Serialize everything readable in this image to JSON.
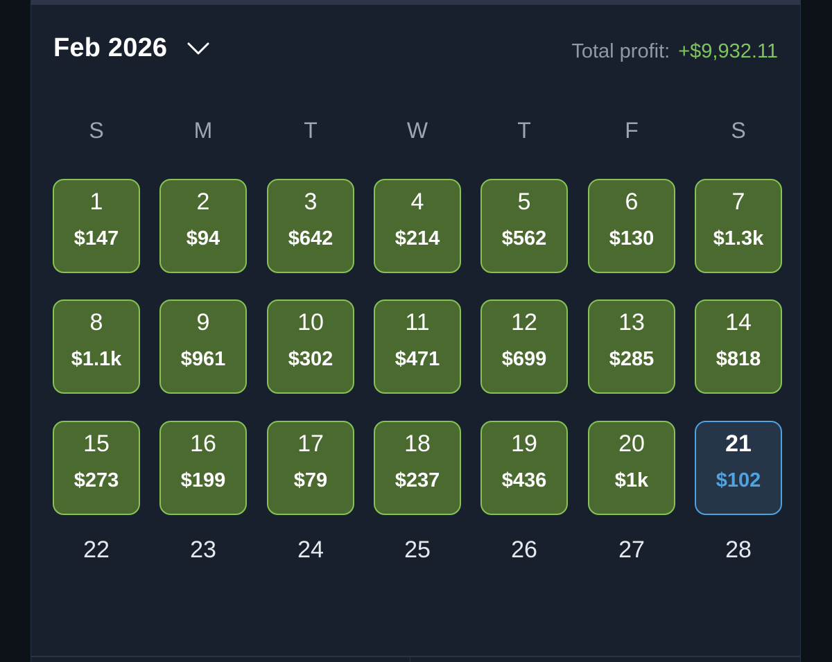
{
  "header": {
    "month_label": "Feb 2026",
    "total_label": "Total profit:",
    "total_value": "+$9,932.11"
  },
  "colors": {
    "profit_bg": "#4b6a2f",
    "profit_border": "#86c256",
    "today_border": "#4ea3e0",
    "total_value": "#7fc65a"
  },
  "weekdays": [
    "S",
    "M",
    "T",
    "W",
    "T",
    "F",
    "S"
  ],
  "days": [
    {
      "num": "1",
      "amount": "$147",
      "state": "profit"
    },
    {
      "num": "2",
      "amount": "$94",
      "state": "profit"
    },
    {
      "num": "3",
      "amount": "$642",
      "state": "profit"
    },
    {
      "num": "4",
      "amount": "$214",
      "state": "profit"
    },
    {
      "num": "5",
      "amount": "$562",
      "state": "profit"
    },
    {
      "num": "6",
      "amount": "$130",
      "state": "profit"
    },
    {
      "num": "7",
      "amount": "$1.3k",
      "state": "profit"
    },
    {
      "num": "8",
      "amount": "$1.1k",
      "state": "profit"
    },
    {
      "num": "9",
      "amount": "$961",
      "state": "profit"
    },
    {
      "num": "10",
      "amount": "$302",
      "state": "profit"
    },
    {
      "num": "11",
      "amount": "$471",
      "state": "profit"
    },
    {
      "num": "12",
      "amount": "$699",
      "state": "profit"
    },
    {
      "num": "13",
      "amount": "$285",
      "state": "profit"
    },
    {
      "num": "14",
      "amount": "$818",
      "state": "profit"
    },
    {
      "num": "15",
      "amount": "$273",
      "state": "profit"
    },
    {
      "num": "16",
      "amount": "$199",
      "state": "profit"
    },
    {
      "num": "17",
      "amount": "$79",
      "state": "profit"
    },
    {
      "num": "18",
      "amount": "$237",
      "state": "profit"
    },
    {
      "num": "19",
      "amount": "$436",
      "state": "profit"
    },
    {
      "num": "20",
      "amount": "$1k",
      "state": "profit"
    },
    {
      "num": "21",
      "amount": "$102",
      "state": "today"
    },
    {
      "num": "22",
      "amount": "",
      "state": "empty"
    },
    {
      "num": "23",
      "amount": "",
      "state": "empty"
    },
    {
      "num": "24",
      "amount": "",
      "state": "empty"
    },
    {
      "num": "25",
      "amount": "",
      "state": "empty"
    },
    {
      "num": "26",
      "amount": "",
      "state": "empty"
    },
    {
      "num": "27",
      "amount": "",
      "state": "empty"
    },
    {
      "num": "28",
      "amount": "",
      "state": "empty"
    }
  ]
}
